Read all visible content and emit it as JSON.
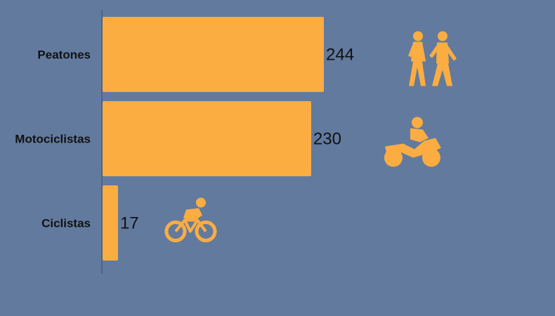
{
  "chart_data": {
    "type": "bar",
    "orientation": "horizontal",
    "categories": [
      "Peatones",
      "Motociclistas",
      "Ciclistas"
    ],
    "values": [
      244,
      230,
      17
    ],
    "icons": [
      "pedestrians-icon",
      "motorcyclist-icon",
      "cyclist-icon"
    ],
    "xlim": [
      0,
      244
    ],
    "grid": false,
    "legend": "none"
  },
  "colors": {
    "background": "#627a9e",
    "bar": "#fbad42",
    "axis": "#4a5c78",
    "text": "#111111"
  }
}
